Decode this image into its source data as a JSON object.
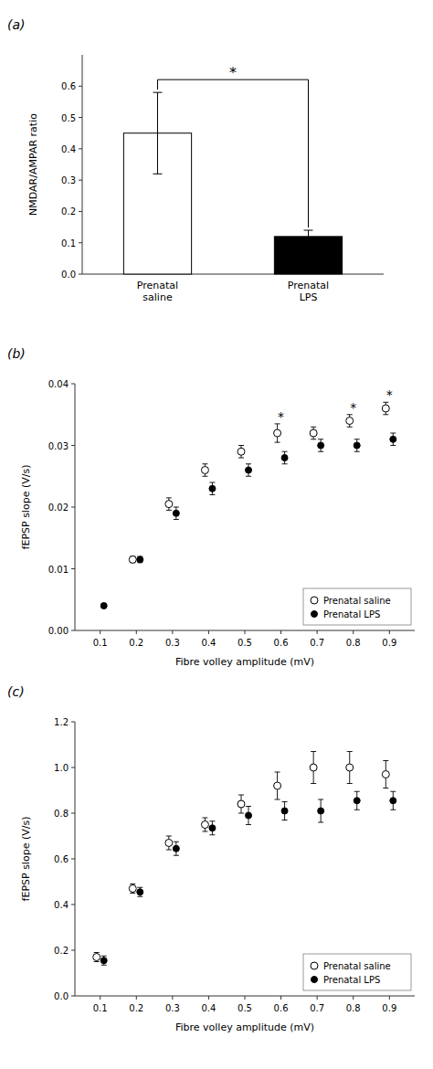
{
  "chart_data": [
    {
      "type": "bar",
      "title": "(a)",
      "categories": [
        "Prenatal\nsaline",
        "Prenatal\nLPS"
      ],
      "values": [
        0.45,
        0.12
      ],
      "errors": [
        0.13,
        0.02
      ],
      "colors": [
        "white",
        "black"
      ],
      "ylabel": "NMDAR/AMPAR ratio",
      "ylim": [
        0,
        0.7
      ],
      "yticks": [
        {
          "value": 0,
          "label": "0.0"
        },
        0.1,
        0.2,
        0.3,
        0.4,
        0.5,
        0.6
      ],
      "annotations": [
        {
          "text": "*"
        }
      ],
      "grid": false
    },
    {
      "type": "scatter",
      "title": "(b)",
      "x": [
        0.1,
        0.2,
        0.3,
        0.4,
        0.5,
        0.6,
        0.7,
        0.8,
        0.9
      ],
      "series": [
        {
          "name": "Prenatal saline",
          "color": "white",
          "marker": "circle",
          "values": [
            null,
            0.0115,
            0.0205,
            0.026,
            0.029,
            0.032,
            0.032,
            0.034,
            0.036
          ],
          "errors": [
            null,
            0.0005,
            0.001,
            0.001,
            0.001,
            0.0015,
            0.001,
            0.001,
            0.001
          ]
        },
        {
          "name": "Prenatal LPS",
          "color": "black",
          "marker": "circle",
          "values": [
            0.004,
            0.0115,
            0.019,
            0.023,
            0.026,
            0.028,
            0.03,
            0.03,
            0.031
          ],
          "errors": [
            0.0003,
            0.0005,
            0.001,
            0.001,
            0.001,
            0.001,
            0.001,
            0.001,
            0.001
          ]
        }
      ],
      "annotations": [
        {
          "x": 0.6,
          "text": "*"
        },
        {
          "x": 0.8,
          "text": "*"
        },
        {
          "x": 0.9,
          "text": "*"
        }
      ],
      "xlabel": "Fibre volley amplitude (mV)",
      "ylabel": "fEPSP slope (V/s)",
      "xlim": [
        0.03,
        0.97
      ],
      "xticks": [
        0.1,
        0.2,
        0.3,
        0.4,
        0.5,
        0.6,
        0.7,
        0.8,
        0.9
      ],
      "ylim": [
        0,
        0.04
      ],
      "yticks": [
        {
          "value": 0,
          "label": "0.00"
        },
        0.01,
        0.02,
        0.03,
        0.04
      ],
      "legend": "lower right",
      "grid": false
    },
    {
      "type": "scatter",
      "title": "(c)",
      "x": [
        0.1,
        0.2,
        0.3,
        0.4,
        0.5,
        0.6,
        0.7,
        0.8,
        0.9
      ],
      "series": [
        {
          "name": "Prenatal saline",
          "color": "white",
          "marker": "circle",
          "values": [
            0.17,
            0.47,
            0.67,
            0.75,
            0.84,
            0.92,
            1.0,
            1.0,
            0.97
          ],
          "errors": [
            0.02,
            0.02,
            0.03,
            0.03,
            0.04,
            0.06,
            0.07,
            0.07,
            0.06
          ]
        },
        {
          "name": "Prenatal LPS",
          "color": "black",
          "marker": "circle",
          "values": [
            0.155,
            0.455,
            0.645,
            0.735,
            0.79,
            0.81,
            0.81,
            0.855,
            0.855
          ],
          "errors": [
            0.02,
            0.02,
            0.03,
            0.03,
            0.04,
            0.04,
            0.05,
            0.04,
            0.04
          ]
        }
      ],
      "xlabel": "Fibre volley amplitude (mV)",
      "ylabel": "fEPSP slope (V/s)",
      "xlim": [
        0.03,
        0.97
      ],
      "xticks": [
        0.1,
        0.2,
        0.3,
        0.4,
        0.5,
        0.6,
        0.7,
        0.8,
        0.9
      ],
      "ylim": [
        0,
        1.2
      ],
      "yticks": [
        {
          "value": 0,
          "label": "0.0"
        },
        0.2,
        0.4,
        0.6,
        0.8,
        {
          "value": 1,
          "label": "1.0"
        },
        1.2
      ],
      "legend": "lower right",
      "grid": false
    }
  ]
}
